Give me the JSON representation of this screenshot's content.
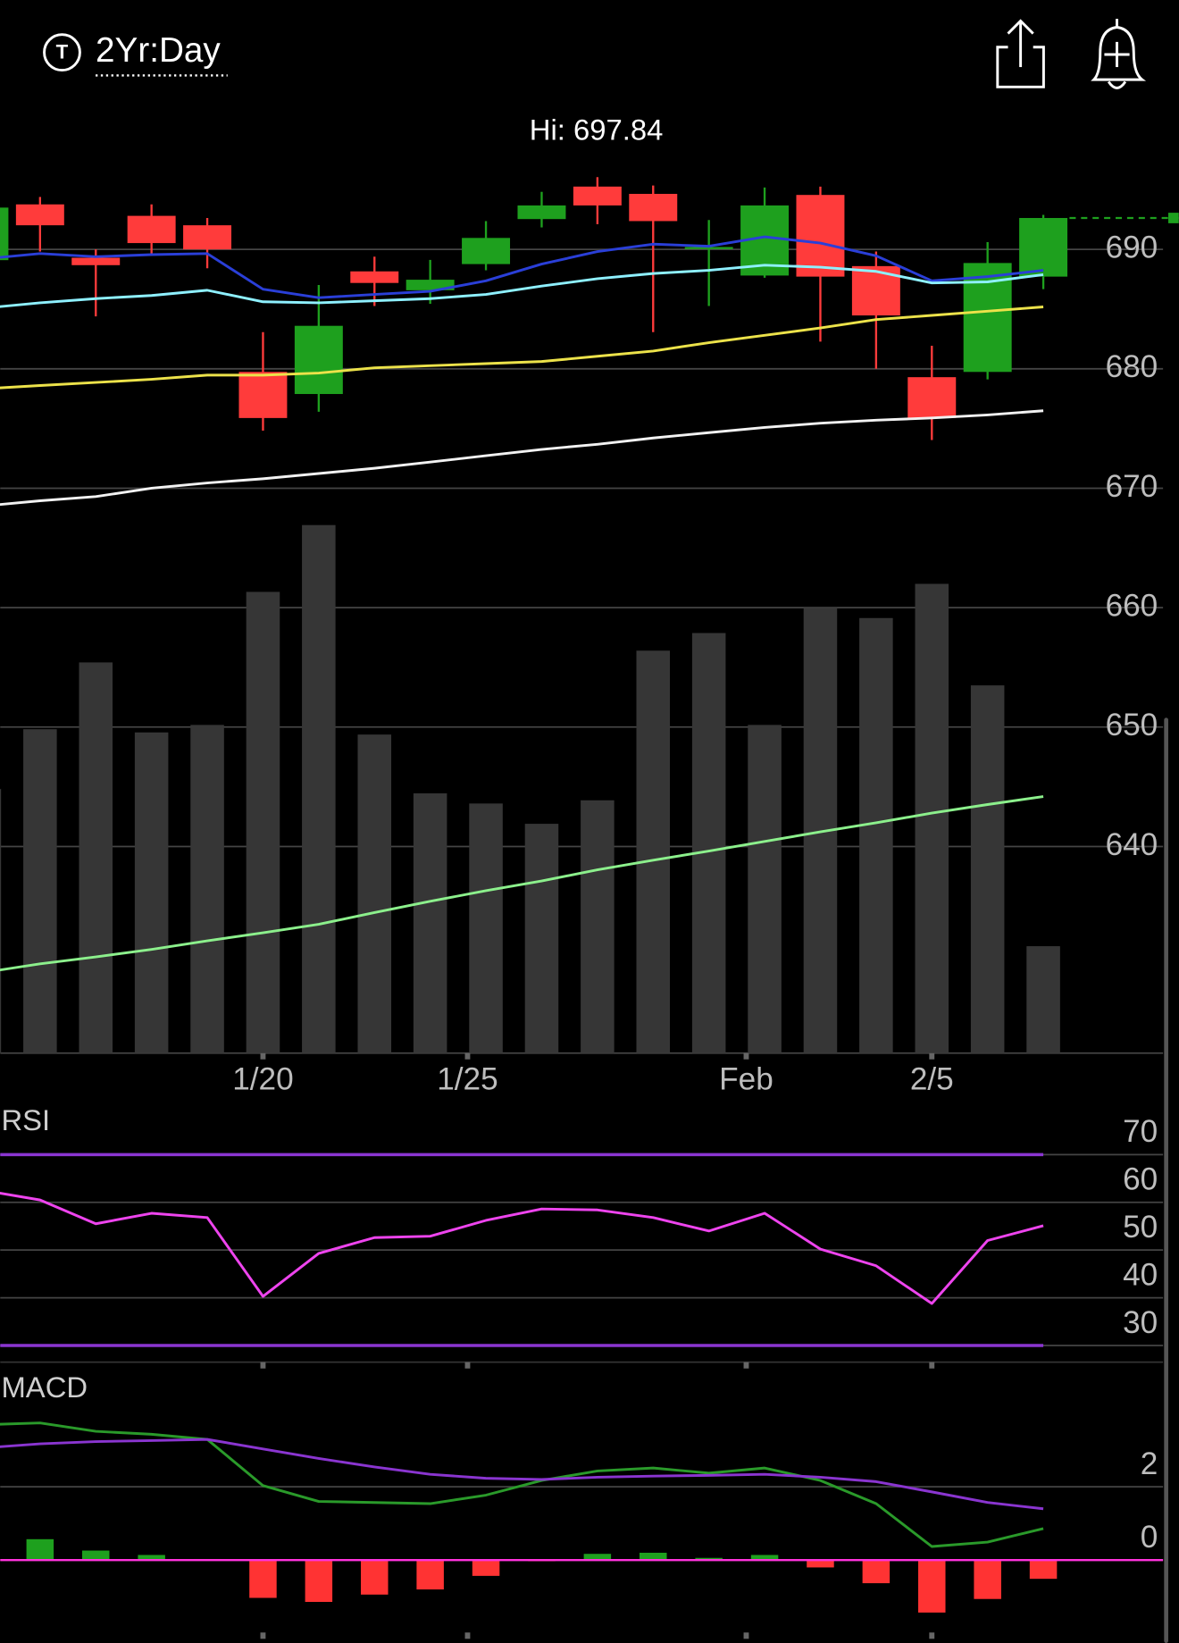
{
  "header": {
    "badge": "T",
    "title": "2Yr:Day"
  },
  "chart_data": [
    {
      "type": "candlestick",
      "annotation": "Hi: 697.84",
      "categories": [
        null,
        null,
        null,
        null,
        null,
        null,
        null,
        null,
        null,
        null,
        null,
        null,
        null,
        null,
        null,
        null,
        null,
        null,
        null,
        null
      ],
      "xlim": [
        0.286,
        21.43
      ],
      "xticks": [
        {
          "value": 5,
          "label": "1/20"
        },
        {
          "value": 8.67,
          "label": "1/25"
        },
        {
          "value": 13.67,
          "label": "Feb"
        },
        {
          "value": 17,
          "label": "2/5"
        }
      ],
      "open": [
        689.1,
        693.77,
        689.3,
        692.81,
        692.02,
        679.74,
        677.89,
        688.16,
        686.58,
        688.77,
        692.54,
        695.26,
        694.65,
        690.1,
        687.81,
        694.56,
        688.6,
        679.3,
        679.74,
        687.72
      ],
      "high": [
        694.0,
        694.39,
        690.0,
        693.77,
        692.63,
        683.07,
        687.02,
        689.39,
        689.12,
        692.37,
        694.82,
        696.05,
        695.35,
        692.46,
        695.18,
        695.26,
        689.82,
        681.93,
        690.61,
        692.89
      ],
      "low": [
        688.5,
        689.82,
        684.39,
        689.65,
        688.42,
        674.82,
        676.4,
        685.26,
        685.44,
        688.25,
        691.84,
        692.11,
        683.07,
        685.26,
        687.63,
        682.28,
        680.0,
        674.04,
        679.12,
        686.67
      ],
      "close": [
        693.5,
        692.02,
        688.68,
        690.53,
        690.0,
        675.88,
        683.6,
        687.19,
        687.46,
        690.96,
        693.68,
        693.68,
        692.37,
        690.2,
        693.68,
        687.72,
        684.47,
        675.88,
        688.86,
        692.63
      ],
      "up_color": "#1ea01e",
      "down_color": "#ff3b3b",
      "last_price": 692.63,
      "last_color": "#1ea01e",
      "ylim": [
        622.7,
        698.6
      ],
      "yticks": [
        640,
        650,
        660,
        670,
        680,
        690
      ],
      "grid": true,
      "series": [
        {
          "color": "#2a3fd8",
          "values": [
            689.21,
            689.65,
            689.39,
            689.56,
            689.65,
            686.67,
            685.96,
            686.23,
            686.49,
            687.37,
            688.77,
            689.82,
            690.44,
            690.26,
            691.05,
            690.53,
            689.47,
            687.37,
            687.72,
            688.25
          ]
        },
        {
          "color": "#8ef0ff",
          "values": [
            685.09,
            685.53,
            685.88,
            686.14,
            686.58,
            685.61,
            685.53,
            685.7,
            685.88,
            686.23,
            686.93,
            687.54,
            687.98,
            688.25,
            688.68,
            688.51,
            688.16,
            687.19,
            687.28,
            687.89
          ]
        },
        {
          "color": "#ece24a",
          "values": [
            678.33,
            678.6,
            678.86,
            679.12,
            679.47,
            679.47,
            679.65,
            680.09,
            680.26,
            680.44,
            680.61,
            681.05,
            681.49,
            682.19,
            682.81,
            683.42,
            684.12,
            684.47,
            684.82,
            685.18
          ]
        },
        {
          "color": "#f2f2f2",
          "values": [
            668.51,
            668.95,
            669.3,
            670.0,
            670.44,
            670.79,
            671.23,
            671.67,
            672.19,
            672.72,
            673.25,
            673.68,
            674.21,
            674.65,
            675.09,
            675.44,
            675.7,
            675.88,
            676.14,
            676.49
          ]
        }
      ]
    },
    {
      "type": "bar",
      "values": [
        49.4,
        60.6,
        73.1,
        60.0,
        61.4,
        86.3,
        98.8,
        59.6,
        48.6,
        46.7,
        42.9,
        47.3,
        75.3,
        78.6,
        61.4,
        83.3,
        81.4,
        87.8,
        68.8,
        20.0
      ],
      "color": "#363636",
      "ylim": [
        0,
        169.6
      ],
      "series": [
        {
          "color": "#8cf08c",
          "values": [
            15.1,
            16.7,
            18.0,
            19.4,
            21.0,
            22.5,
            24.1,
            26.3,
            28.4,
            30.4,
            32.2,
            34.3,
            36.1,
            37.8,
            39.6,
            41.4,
            43.1,
            44.9,
            46.5,
            48.0
          ]
        }
      ]
    },
    {
      "type": "line",
      "title": "RSI",
      "ylim": [
        26.5,
        80.3
      ],
      "yticks": [
        30,
        40,
        50,
        60,
        70
      ],
      "grid": true,
      "levels": [
        70,
        30
      ],
      "level_color": "#8a35d0",
      "series": [
        {
          "color": "#ee44ee",
          "values": [
            62.5,
            60.5,
            55.5,
            57.7,
            56.8,
            40.3,
            49.3,
            52.6,
            52.9,
            56.2,
            58.6,
            58.4,
            56.8,
            54.0,
            57.7,
            50.2,
            46.7,
            38.8,
            52.0,
            55.1
          ]
        }
      ]
    },
    {
      "type": "macd",
      "title": "MACD",
      "ylim": [
        -2.26,
        5.11
      ],
      "yticks": [
        0,
        2
      ],
      "grid": true,
      "zero_color": "#ff33dd",
      "histogram": [
        0.6,
        0.57,
        0.26,
        0.14,
        0.03,
        -1.03,
        -1.14,
        -0.94,
        -0.8,
        -0.43,
        -0.03,
        0.17,
        0.2,
        0.06,
        0.14,
        -0.2,
        -0.63,
        -1.43,
        -1.06,
        -0.51
      ],
      "up_color": "#1ea01e",
      "down_color": "#ff3333",
      "series": [
        {
          "color": "#2a9a2a",
          "values": [
            3.69,
            3.74,
            3.51,
            3.43,
            3.29,
            2.03,
            1.6,
            1.57,
            1.54,
            1.77,
            2.17,
            2.43,
            2.51,
            2.37,
            2.51,
            2.17,
            1.54,
            0.37,
            0.49,
            0.86
          ]
        },
        {
          "color": "#8a35d0",
          "values": [
            3.06,
            3.17,
            3.23,
            3.26,
            3.29,
            3.03,
            2.77,
            2.54,
            2.34,
            2.23,
            2.2,
            2.26,
            2.29,
            2.31,
            2.34,
            2.26,
            2.14,
            1.86,
            1.57,
            1.4
          ]
        }
      ]
    }
  ]
}
